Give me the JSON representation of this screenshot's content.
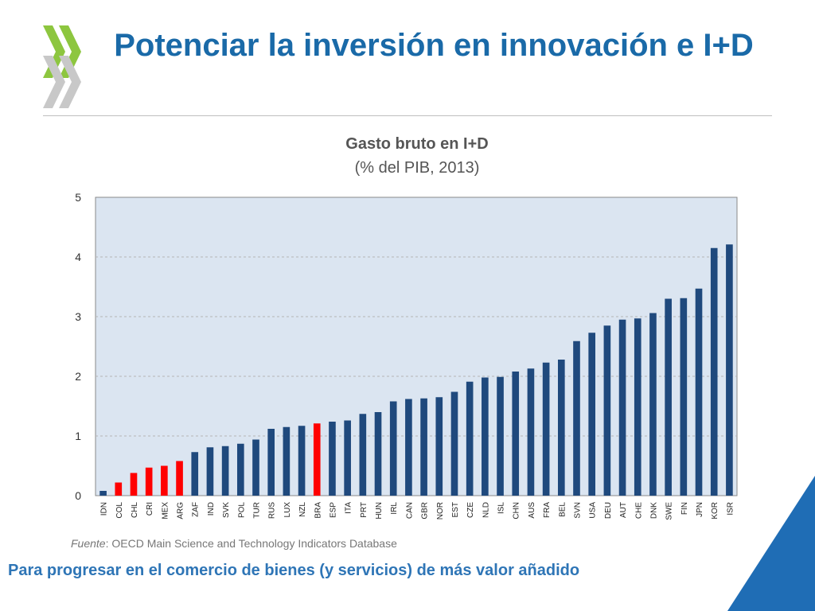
{
  "slide": {
    "title": "Potenciar la inversión en innovación e I+D",
    "source_label": "Fuente",
    "source_text": ": OECD Main Science and Technology Indicators Database",
    "footer": "Para progresar en el comercio de bienes (y servicios) de más valor añadido"
  },
  "colors": {
    "title": "#1a6aa8",
    "bar_default": "#1f497d",
    "bar_highlight": "#ff0000",
    "plot_bg": "#dbe5f1",
    "logo_green": "#8dc63f",
    "logo_gray": "#c8c8c8",
    "corner_blue": "#1f6db5"
  },
  "chart_data": {
    "type": "bar",
    "title": "Gasto bruto en I+D",
    "subtitle": "(% del PIB, 2013)",
    "xlabel": "",
    "ylabel": "",
    "ylim": [
      0,
      5
    ],
    "yticks": [
      0,
      1,
      2,
      3,
      4,
      5
    ],
    "grid": true,
    "legend": "none",
    "categories": [
      "IDN",
      "COL",
      "CHL",
      "CRI",
      "MEX",
      "ARG",
      "ZAF",
      "IND",
      "SVK",
      "POL",
      "TUR",
      "RUS",
      "LUX",
      "NZL",
      "BRA",
      "ESP",
      "ITA",
      "PRT",
      "HUN",
      "IRL",
      "CAN",
      "GBR",
      "NOR",
      "EST",
      "CZE",
      "NLD",
      "ISL",
      "CHN",
      "AUS",
      "FRA",
      "BEL",
      "SVN",
      "USA",
      "DEU",
      "AUT",
      "CHE",
      "DNK",
      "SWE",
      "FIN",
      "JPN",
      "KOR",
      "ISR"
    ],
    "values": [
      0.08,
      0.22,
      0.38,
      0.47,
      0.5,
      0.58,
      0.73,
      0.81,
      0.83,
      0.87,
      0.94,
      1.12,
      1.15,
      1.17,
      1.21,
      1.24,
      1.26,
      1.37,
      1.4,
      1.58,
      1.62,
      1.63,
      1.65,
      1.74,
      1.91,
      1.98,
      1.99,
      2.08,
      2.13,
      2.23,
      2.28,
      2.59,
      2.73,
      2.85,
      2.95,
      2.97,
      3.06,
      3.3,
      3.31,
      3.47,
      4.15,
      4.21
    ],
    "highlight": [
      "COL",
      "CHL",
      "CRI",
      "MEX",
      "ARG",
      "BRA"
    ]
  }
}
